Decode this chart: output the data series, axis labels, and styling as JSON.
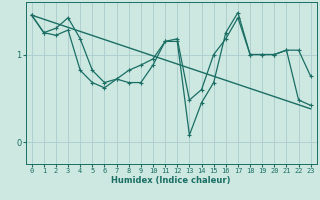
{
  "xlabel": "Humidex (Indice chaleur)",
  "bg_color": "#cce8e0",
  "grid_color": "#aacccc",
  "line_color": "#1a6e64",
  "xlim": [
    -0.5,
    23.5
  ],
  "ylim": [
    -0.25,
    1.6
  ],
  "yticks": [
    0,
    1
  ],
  "xticks": [
    0,
    1,
    2,
    3,
    4,
    5,
    6,
    7,
    8,
    9,
    10,
    11,
    12,
    13,
    14,
    15,
    16,
    17,
    18,
    19,
    20,
    21,
    22,
    23
  ],
  "series1_x": [
    0,
    1,
    2,
    3,
    4,
    5,
    6,
    7,
    8,
    9,
    10,
    11,
    12,
    13,
    14,
    15,
    16,
    17,
    18,
    19,
    20,
    21,
    22,
    23
  ],
  "series1_y": [
    1.45,
    1.25,
    1.22,
    1.28,
    0.82,
    0.68,
    0.62,
    0.72,
    0.68,
    0.68,
    0.88,
    1.15,
    1.18,
    0.48,
    0.6,
    1.0,
    1.18,
    1.42,
    1.0,
    1.0,
    1.0,
    1.05,
    1.05,
    0.75
  ],
  "series2_x": [
    0,
    1,
    2,
    3,
    4,
    5,
    6,
    7,
    8,
    9,
    10,
    11,
    12,
    13,
    14,
    15,
    16,
    17,
    18,
    19,
    20,
    21,
    22,
    23
  ],
  "series2_y": [
    1.45,
    1.25,
    1.3,
    1.42,
    1.18,
    0.82,
    0.68,
    0.72,
    0.82,
    0.88,
    0.95,
    1.15,
    1.15,
    0.08,
    0.45,
    0.68,
    1.25,
    1.48,
    1.0,
    1.0,
    1.0,
    1.05,
    0.48,
    0.42
  ],
  "series3_x": [
    0,
    23
  ],
  "series3_y": [
    1.45,
    0.38
  ]
}
